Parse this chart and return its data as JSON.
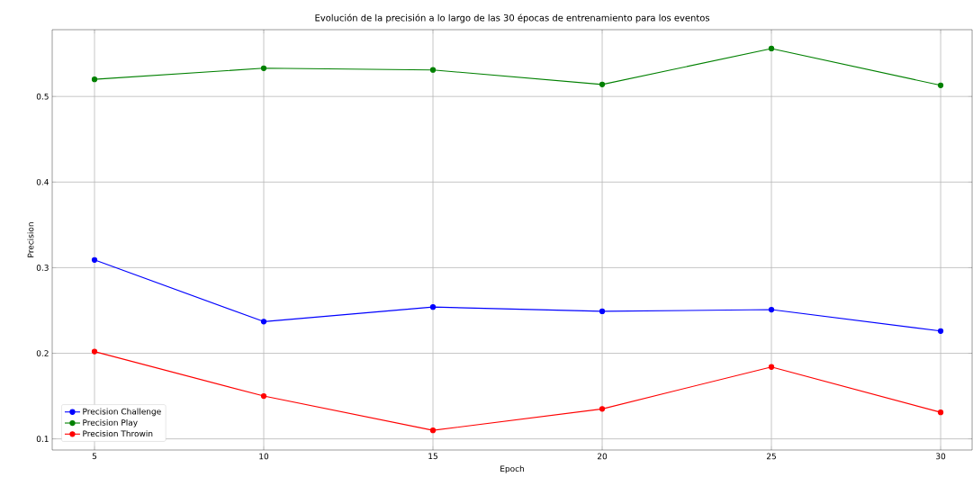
{
  "chart_data": {
    "type": "line",
    "title": "Evolución de la precisión a lo largo de las 30 épocas de entrenamiento para los eventos",
    "xlabel": "Epoch",
    "ylabel": "Precision",
    "x": [
      5,
      10,
      15,
      20,
      25,
      30
    ],
    "series": [
      {
        "name": "Precision Challenge",
        "color": "#0000ff",
        "values": [
          0.309,
          0.237,
          0.254,
          0.249,
          0.251,
          0.226
        ]
      },
      {
        "name": "Precision Play",
        "color": "#008000",
        "values": [
          0.52,
          0.533,
          0.531,
          0.514,
          0.556,
          0.513
        ]
      },
      {
        "name": "Precision Throwin",
        "color": "#ff0000",
        "values": [
          0.202,
          0.15,
          0.11,
          0.135,
          0.184,
          0.131
        ]
      }
    ],
    "xlim": [
      3.75,
      30.93
    ],
    "ylim": [
      0.087,
      0.578
    ],
    "xticks": [
      5,
      10,
      15,
      20,
      25,
      30
    ],
    "yticks": [
      0.1,
      0.2,
      0.3,
      0.4,
      0.5
    ],
    "grid": true,
    "legend": "bottom left",
    "marker": "circle",
    "line_style": "solid"
  }
}
